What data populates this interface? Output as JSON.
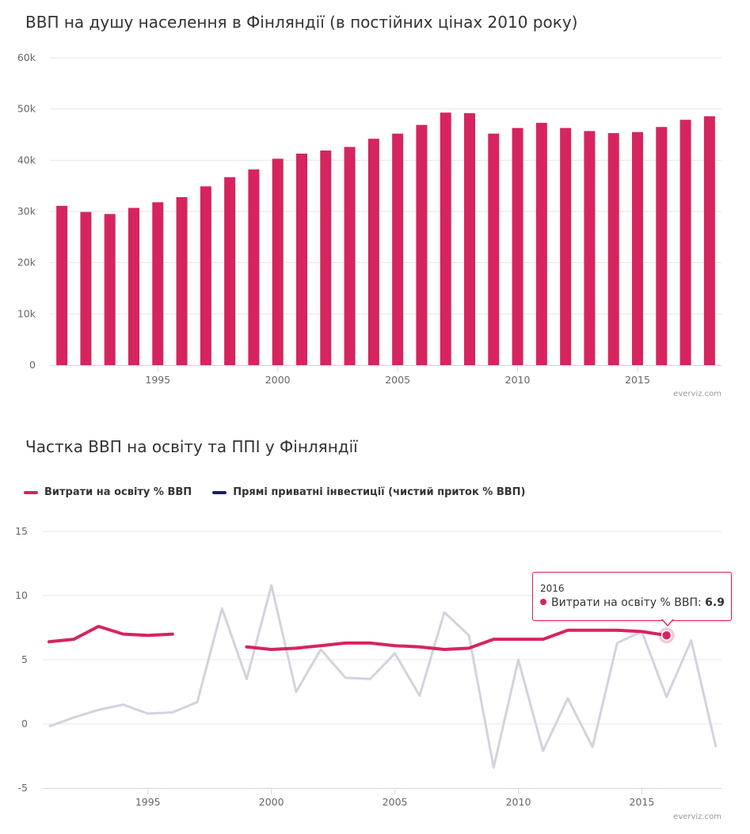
{
  "chart_data": [
    {
      "type": "bar",
      "title": "ВВП на душу населення в Фінляндії (в постійних цінах 2010 року)",
      "credit": "everviz.com",
      "color": "#d6245f",
      "x": [
        1991,
        1992,
        1993,
        1994,
        1995,
        1996,
        1997,
        1998,
        1999,
        2000,
        2001,
        2002,
        2003,
        2004,
        2005,
        2006,
        2007,
        2008,
        2009,
        2010,
        2011,
        2012,
        2013,
        2014,
        2015,
        2016,
        2017,
        2018
      ],
      "values": [
        31100,
        29900,
        29500,
        30700,
        31800,
        32800,
        34900,
        36700,
        38200,
        40300,
        41300,
        41900,
        42600,
        44200,
        45200,
        46900,
        49300,
        49200,
        45200,
        46300,
        47300,
        46300,
        45700,
        45300,
        45500,
        46500,
        47900,
        48600
      ],
      "ylim": [
        0,
        60000
      ],
      "ytick_labels": [
        "0",
        "10k",
        "20k",
        "30k",
        "40k",
        "50k",
        "60k"
      ],
      "xtick_labels": [
        "1995",
        "2000",
        "2005",
        "2010",
        "2015"
      ],
      "grid": true
    },
    {
      "type": "line",
      "title": "Частка ВВП на освіту та ППІ у Фінляндії",
      "credit": "everviz.com",
      "legend_position": "top-left",
      "ylim": [
        -5,
        15
      ],
      "ytick_labels": [
        "-5",
        "0",
        "5",
        "10",
        "15"
      ],
      "xtick_labels": [
        "1995",
        "2000",
        "2005",
        "2010",
        "2015"
      ],
      "grid": true,
      "x": [
        1991,
        1992,
        1993,
        1994,
        1995,
        1996,
        1997,
        1998,
        1999,
        2000,
        2001,
        2002,
        2003,
        2004,
        2005,
        2006,
        2007,
        2008,
        2009,
        2010,
        2011,
        2012,
        2013,
        2014,
        2015,
        2016,
        2017,
        2018
      ],
      "series": [
        {
          "name": "Витрати на освіту % ВВП",
          "color": "#d6245f",
          "values": [
            6.4,
            6.6,
            7.6,
            7.0,
            6.9,
            7.0,
            null,
            null,
            6.0,
            5.8,
            5.9,
            6.1,
            6.3,
            6.3,
            6.1,
            6.0,
            5.8,
            5.9,
            6.6,
            6.6,
            6.6,
            7.3,
            7.3,
            7.3,
            7.2,
            6.9,
            null,
            null
          ]
        },
        {
          "name": "Прямі приватні інвестиції (чистий приток % ВВП)",
          "color": "#1f1f5f",
          "inactive_color": "#d4d2de",
          "values": [
            -0.2,
            0.5,
            1.1,
            1.5,
            0.8,
            0.9,
            1.7,
            9.0,
            3.5,
            10.8,
            2.5,
            5.8,
            3.6,
            3.5,
            5.5,
            2.2,
            8.7,
            6.9,
            -3.4,
            5.0,
            -2.1,
            2.0,
            -1.8,
            6.3,
            7.2,
            2.1,
            6.5,
            -1.8
          ]
        }
      ],
      "tooltip": {
        "year": "2016",
        "label": "Витрати на освіту % ВВП: ",
        "value": "6.9"
      }
    }
  ]
}
